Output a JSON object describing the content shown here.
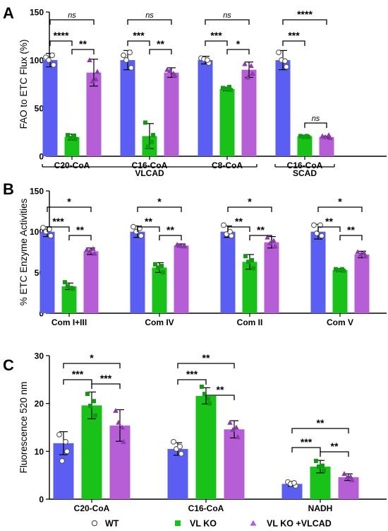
{
  "colors": {
    "wt": "#5b5ef2",
    "vlko": "#19c219",
    "vlcad": "#b55ed6",
    "axis": "#000000"
  },
  "legend": {
    "items": [
      {
        "key": "wt",
        "label": "WT",
        "marker": "circle-open"
      },
      {
        "key": "vlko",
        "label": "VL KO",
        "marker": "square"
      },
      {
        "key": "vlcad",
        "label": "VL KO +VLCAD",
        "marker": "triangle"
      }
    ]
  },
  "chart_data": [
    {
      "panel": "A",
      "type": "bar",
      "ylabel": "FAO to ETC Flux (%)",
      "ylim": [
        0,
        150
      ],
      "yticks": [
        0,
        50,
        100,
        150
      ],
      "categories": [
        "C20-CoA",
        "C16-CoA",
        "C8-CoA",
        "C16-CoA"
      ],
      "group_labels": [
        {
          "label": "VLCAD",
          "span": [
            0,
            2
          ]
        },
        {
          "label": "SCAD",
          "span": [
            3,
            3
          ]
        }
      ],
      "series": [
        {
          "name": "WT",
          "key": "wt",
          "marker": "circle-open",
          "values": [
            100,
            100,
            100,
            100
          ],
          "errors": [
            7,
            10,
            4,
            10
          ],
          "points": [
            [
              103,
              95,
              100,
              105
            ],
            [
              105,
              92,
              100,
              108
            ],
            [
              102,
              97,
              101,
              100
            ],
            [
              108,
              93,
              100,
              99
            ]
          ]
        },
        {
          "name": "VL KO",
          "key": "vlko",
          "marker": "square",
          "values": [
            20,
            21,
            70,
            21
          ],
          "errors": [
            3,
            13,
            2,
            1
          ],
          "points": [
            [
              22,
              18,
              19,
              21
            ],
            [
              35,
              22,
              10,
              15
            ],
            [
              71,
              69,
              70,
              72
            ],
            [
              21,
              20,
              20,
              21
            ]
          ]
        },
        {
          "name": "VL KO +VLCAD",
          "key": "vlcad",
          "marker": "triangle",
          "values": [
            87,
            87,
            90,
            20
          ],
          "errors": [
            14,
            5,
            8,
            1
          ],
          "points": [
            [
              100,
              88,
              78,
              80
            ],
            [
              90,
              84,
              89,
              86
            ],
            [
              96,
              86,
              82,
              94
            ],
            [
              21,
              19,
              20,
              22
            ]
          ]
        }
      ],
      "significance": [
        {
          "group": 0,
          "from": 0,
          "to": 2,
          "level": 1,
          "label": "ns"
        },
        {
          "group": 0,
          "from": 0,
          "to": 1,
          "level": 0,
          "label": "****"
        },
        {
          "group": 0,
          "from": 1,
          "to": 2,
          "level": 0,
          "label": "**"
        },
        {
          "group": 1,
          "from": 0,
          "to": 2,
          "level": 1,
          "label": "ns"
        },
        {
          "group": 1,
          "from": 0,
          "to": 1,
          "level": 0,
          "label": "***"
        },
        {
          "group": 1,
          "from": 1,
          "to": 2,
          "level": 0,
          "label": "**"
        },
        {
          "group": 2,
          "from": 0,
          "to": 2,
          "level": 1,
          "label": "ns"
        },
        {
          "group": 2,
          "from": 0,
          "to": 1,
          "level": 0,
          "label": "***"
        },
        {
          "group": 2,
          "from": 1,
          "to": 2,
          "level": 0,
          "label": "*"
        },
        {
          "group": 3,
          "from": 0,
          "to": 2,
          "level": 1,
          "label": "****"
        },
        {
          "group": 3,
          "from": 0,
          "to": 1,
          "level": 0,
          "label": "***"
        },
        {
          "group": 3,
          "from": 1,
          "to": 2,
          "level": -1,
          "label": "ns"
        }
      ]
    },
    {
      "panel": "B",
      "type": "bar",
      "ylabel": "% ETC Enzyme Activities",
      "ylim": [
        0,
        150
      ],
      "yticks": [
        0,
        50,
        100,
        150
      ],
      "categories": [
        "Com I+III",
        "Com IV",
        "Com II",
        "Com V"
      ],
      "series": [
        {
          "name": "WT",
          "key": "wt",
          "marker": "circle-open",
          "values": [
            100,
            100,
            100,
            100
          ],
          "errors": [
            6,
            7,
            7,
            9
          ],
          "points": [
            [
              105,
              95,
              100,
              103
            ],
            [
              106,
              95,
              100,
              104
            ],
            [
              108,
              95,
              97,
              100
            ],
            [
              108,
              95,
              98,
              108
            ]
          ]
        },
        {
          "name": "VL KO",
          "key": "vlko",
          "marker": "square",
          "values": [
            33,
            56,
            63,
            53
          ],
          "errors": [
            4,
            6,
            9,
            2
          ],
          "points": [
            [
              38,
              30,
              33,
              31
            ],
            [
              60,
              50,
              56,
              58
            ],
            [
              70,
              55,
              63,
              65
            ],
            [
              54,
              52,
              53,
              54
            ]
          ]
        },
        {
          "name": "VL KO +VLCAD",
          "key": "vlcad",
          "marker": "triangle",
          "values": [
            76,
            83,
            87,
            72
          ],
          "errors": [
            4,
            2,
            7,
            4
          ],
          "points": [
            [
              78,
              73,
              76,
              79
            ],
            [
              84,
              82,
              83,
              82
            ],
            [
              93,
              82,
              86,
              89
            ],
            [
              75,
              70,
              72,
              74
            ]
          ]
        }
      ],
      "significance": [
        {
          "group": 0,
          "from": 0,
          "to": 2,
          "level": 1,
          "label": "*"
        },
        {
          "group": 0,
          "from": 0,
          "to": 1,
          "level": 0,
          "label": "***"
        },
        {
          "group": 0,
          "from": 1,
          "to": 2,
          "level": 0,
          "label": "**"
        },
        {
          "group": 1,
          "from": 0,
          "to": 2,
          "level": 1,
          "label": "*"
        },
        {
          "group": 1,
          "from": 0,
          "to": 1,
          "level": 0,
          "label": "**"
        },
        {
          "group": 1,
          "from": 1,
          "to": 2,
          "level": 0,
          "label": "**"
        },
        {
          "group": 2,
          "from": 0,
          "to": 2,
          "level": 1,
          "label": "*"
        },
        {
          "group": 2,
          "from": 0,
          "to": 1,
          "level": 0,
          "label": "**"
        },
        {
          "group": 2,
          "from": 1,
          "to": 2,
          "level": 0,
          "label": "**"
        },
        {
          "group": 3,
          "from": 0,
          "to": 2,
          "level": 1,
          "label": "*"
        },
        {
          "group": 3,
          "from": 0,
          "to": 1,
          "level": 0,
          "label": "**"
        },
        {
          "group": 3,
          "from": 1,
          "to": 2,
          "level": 0,
          "label": "**"
        }
      ]
    },
    {
      "panel": "C",
      "type": "bar",
      "ylabel": "Fluorescence 520 nm",
      "ylim": [
        0,
        30
      ],
      "yticks": [
        0,
        10,
        20,
        30
      ],
      "categories": [
        "C20-CoA",
        "C16-CoA",
        "NADH"
      ],
      "series": [
        {
          "name": "WT",
          "key": "wt",
          "marker": "circle-open",
          "values": [
            11.7,
            10.5,
            3.2
          ],
          "errors": [
            2.4,
            1.3,
            0.5
          ],
          "points": [
            [
              13.5,
              10.0,
              8.0,
              12.0
            ],
            [
              12.0,
              9.5,
              10.5,
              11.0
            ],
            [
              3.6,
              2.8,
              3.2,
              3.4
            ]
          ]
        },
        {
          "name": "VL KO",
          "key": "vlko",
          "marker": "square",
          "values": [
            19.6,
            21.6,
            6.8
          ],
          "errors": [
            2.8,
            1.7,
            1.3
          ],
          "points": [
            [
              22.0,
              17.5,
              19.5,
              20.5
            ],
            [
              23.5,
              20.0,
              22.0,
              21.0
            ],
            [
              8.0,
              6.0,
              6.8,
              7.0
            ]
          ]
        },
        {
          "name": "VL KO +VLCAD",
          "key": "vlcad",
          "marker": "triangle",
          "values": [
            15.4,
            14.6,
            4.6
          ],
          "errors": [
            3.3,
            1.8,
            0.7
          ],
          "points": [
            [
              18.5,
              12.0,
              16.0,
              15.0
            ],
            [
              16.0,
              13.0,
              14.5,
              15.0
            ],
            [
              5.3,
              4.0,
              4.5,
              4.7
            ]
          ]
        }
      ],
      "significance": [
        {
          "group": 0,
          "from": 0,
          "to": 2,
          "level": 1,
          "label": "*"
        },
        {
          "group": 0,
          "from": 0,
          "to": 1,
          "level": 0,
          "label": "***"
        },
        {
          "group": 0,
          "from": 1,
          "to": 2,
          "level": 0,
          "label": "***"
        },
        {
          "group": 1,
          "from": 0,
          "to": 2,
          "level": 1,
          "label": "**"
        },
        {
          "group": 1,
          "from": 0,
          "to": 1,
          "level": 0,
          "label": "***"
        },
        {
          "group": 1,
          "from": 1,
          "to": 2,
          "level": 0,
          "label": "**"
        },
        {
          "group": 2,
          "from": 0,
          "to": 2,
          "level": 1,
          "label": "**"
        },
        {
          "group": 2,
          "from": 0,
          "to": 1,
          "level": 0,
          "label": "***"
        },
        {
          "group": 2,
          "from": 1,
          "to": 2,
          "level": 0,
          "label": "**"
        }
      ]
    }
  ]
}
